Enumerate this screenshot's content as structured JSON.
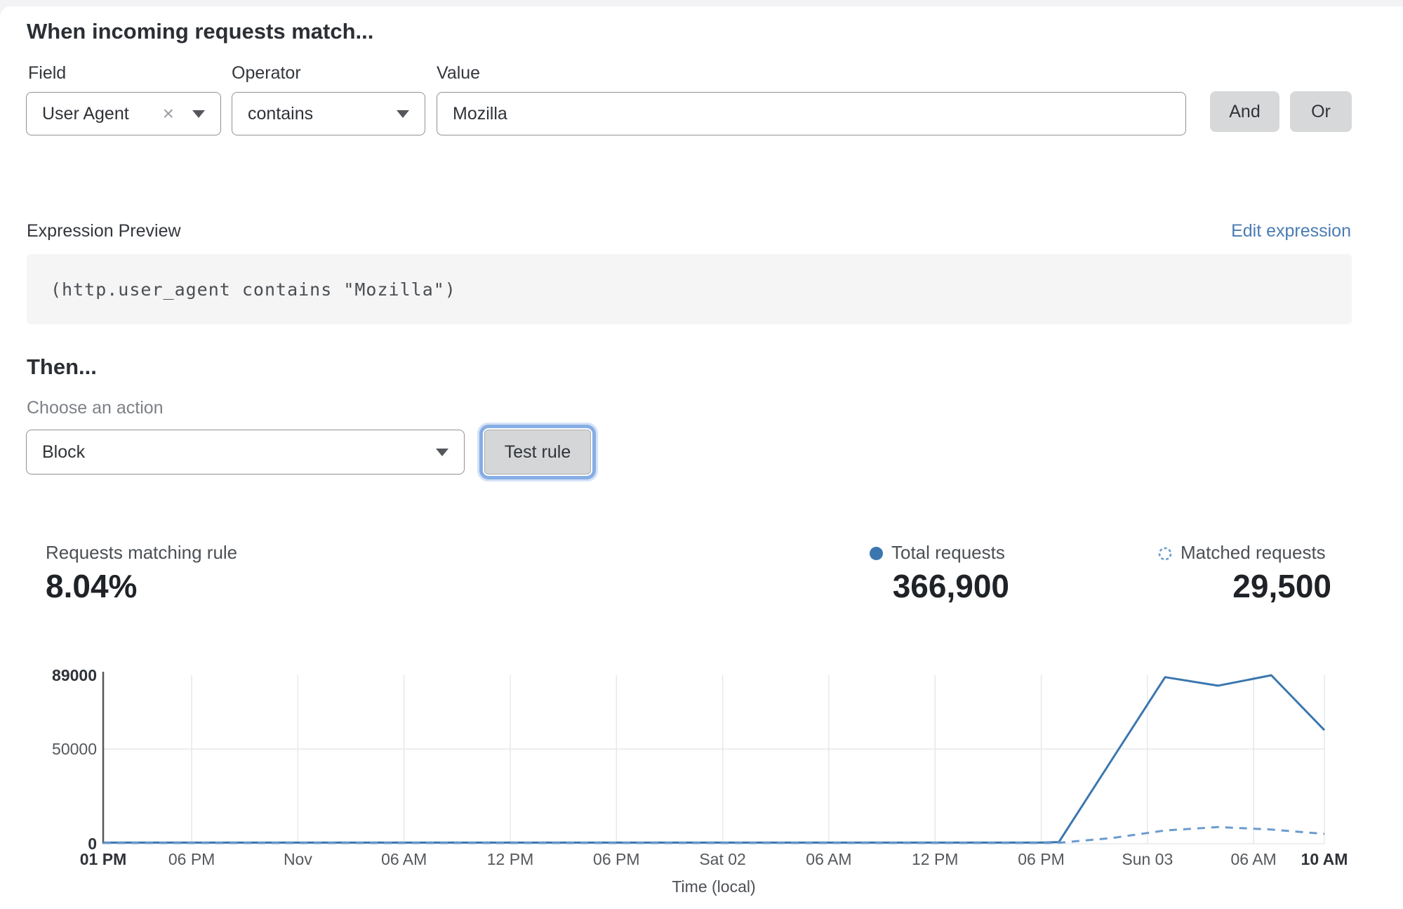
{
  "rule_builder": {
    "heading": "When incoming requests match...",
    "field": {
      "label": "Field",
      "value": "User Agent"
    },
    "operator": {
      "label": "Operator",
      "value": "contains"
    },
    "value": {
      "label": "Value",
      "value": "Mozilla"
    },
    "and_label": "And",
    "or_label": "Or"
  },
  "expression": {
    "label": "Expression Preview",
    "edit_link": "Edit expression",
    "code": "(http.user_agent contains \"Mozilla\")"
  },
  "then": {
    "heading": "Then...",
    "action_label": "Choose an action",
    "action_value": "Block",
    "test_button": "Test rule"
  },
  "stats": {
    "matching": {
      "label": "Requests matching rule",
      "value": "8.04%"
    },
    "total": {
      "label": "Total requests",
      "value": "366,900"
    },
    "matched": {
      "label": "Matched requests",
      "value": "29,500"
    }
  },
  "colors": {
    "accent_blue": "#3b77ae",
    "dashed_blue": "#6b9cce",
    "link_blue": "#4a7cb4",
    "focus_ring": "#87ade5",
    "button_gray": "#d7d8d9",
    "grid_gray": "#e7e8e9"
  },
  "chart_data": {
    "type": "line",
    "title": "",
    "xlabel": "Time (local)",
    "ylabel": "",
    "ylim": [
      0,
      89000
    ],
    "x_range_hours": [
      0,
      69
    ],
    "grid": true,
    "legend_position": "top-right",
    "y_ticks": [
      {
        "value": 0,
        "label": "0",
        "bold": true
      },
      {
        "value": 50000,
        "label": "50000",
        "bold": false
      },
      {
        "value": 89000,
        "label": "89000",
        "bold": true
      }
    ],
    "x_ticks": [
      {
        "h": 0,
        "label": "01 PM",
        "bold": true
      },
      {
        "h": 5,
        "label": "06 PM",
        "bold": false
      },
      {
        "h": 11,
        "label": "Nov",
        "bold": false
      },
      {
        "h": 17,
        "label": "06 AM",
        "bold": false
      },
      {
        "h": 23,
        "label": "12 PM",
        "bold": false
      },
      {
        "h": 29,
        "label": "06 PM",
        "bold": false
      },
      {
        "h": 35,
        "label": "Sat 02",
        "bold": false
      },
      {
        "h": 41,
        "label": "06 AM",
        "bold": false
      },
      {
        "h": 47,
        "label": "12 PM",
        "bold": false
      },
      {
        "h": 53,
        "label": "06 PM",
        "bold": false
      },
      {
        "h": 59,
        "label": "Sun 03",
        "bold": false
      },
      {
        "h": 65,
        "label": "06 AM",
        "bold": false
      },
      {
        "h": 69,
        "label": "10 AM",
        "bold": true
      }
    ],
    "series": [
      {
        "name": "Total requests",
        "style": "solid",
        "color": "#3b77ae",
        "x": [
          0,
          5,
          11,
          17,
          23,
          29,
          35,
          41,
          47,
          53,
          54,
          57,
          60,
          63,
          66,
          69
        ],
        "values": [
          600,
          600,
          600,
          600,
          600,
          600,
          600,
          600,
          600,
          600,
          900,
          44500,
          88000,
          83500,
          89000,
          60000
        ]
      },
      {
        "name": "Matched requests",
        "style": "dashed",
        "color": "#6b9cce",
        "x": [
          0,
          5,
          11,
          17,
          23,
          29,
          35,
          41,
          47,
          53,
          54,
          57,
          60,
          63,
          66,
          69
        ],
        "values": [
          350,
          350,
          350,
          350,
          350,
          350,
          350,
          350,
          350,
          350,
          500,
          3000,
          7000,
          8800,
          7500,
          5200
        ]
      }
    ]
  }
}
